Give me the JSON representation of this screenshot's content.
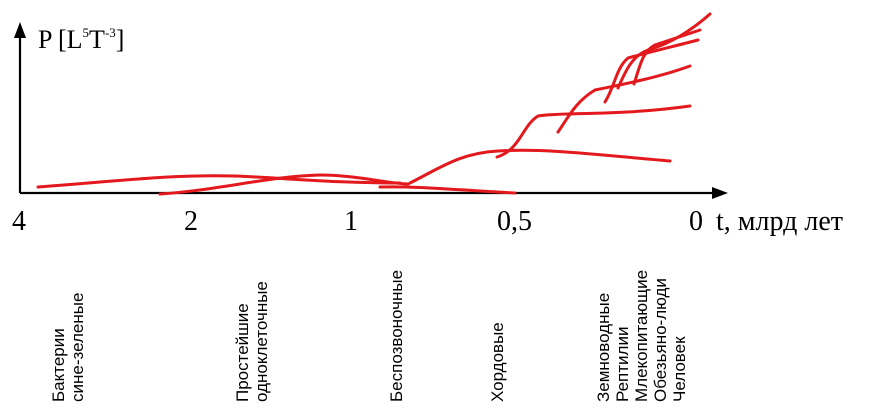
{
  "y_axis": {
    "title_main": "P [L",
    "title_exp1": "5",
    "title_mid": "T",
    "title_exp2": "-3",
    "title_end": "]"
  },
  "x_axis": {
    "title": "t, млрд лет",
    "ticks": [
      "4",
      "2",
      "1",
      "0,5",
      "0"
    ]
  },
  "groups": [
    [
      "Бактерии",
      "сине-зеленые"
    ],
    [
      "Простейшие",
      "одноклеточные"
    ],
    [
      "Беспозвоночные"
    ],
    [
      "Хордовые"
    ],
    [
      "Земноводные",
      "Рептилии",
      "Млекопитающие",
      "Обезьяно-люди",
      "Человек"
    ]
  ],
  "colors": {
    "curves": "#e3191d",
    "axes": "#000000"
  }
}
